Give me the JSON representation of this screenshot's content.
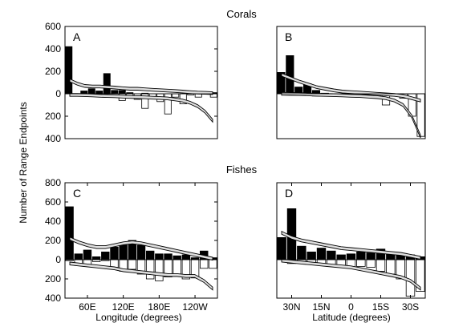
{
  "chart_data": [
    {
      "panel": "A",
      "row_title": "Corals",
      "type": "bar",
      "xlabel": "",
      "ylabel": "Number of Range Endpoints",
      "ylim": [
        -400,
        600
      ],
      "yticks": [
        -400,
        -200,
        0,
        200,
        400,
        600
      ],
      "ytick_labels": [
        "400",
        "200",
        "0",
        "200",
        "400",
        "600"
      ],
      "xticks": [],
      "upper_bars": [
        420,
        0,
        25,
        45,
        25,
        180,
        30,
        30,
        10,
        0,
        5,
        0,
        0,
        0,
        0,
        0,
        0,
        0,
        0,
        10
      ],
      "lower_bars": [
        0,
        -10,
        -5,
        0,
        0,
        0,
        0,
        -60,
        -20,
        -50,
        -130,
        -40,
        -70,
        -180,
        -30,
        -90,
        -10,
        -30,
        0,
        -30
      ],
      "upper_band_center": [
        120,
        90,
        70,
        65,
        65,
        60,
        55,
        50,
        45,
        45,
        40,
        35,
        32,
        28,
        25,
        20,
        15,
        10,
        8,
        5
      ],
      "lower_band_center": [
        -10,
        -10,
        -12,
        -15,
        -18,
        -20,
        -22,
        -25,
        -28,
        -30,
        -32,
        -35,
        -38,
        -42,
        -50,
        -60,
        -80,
        -110,
        -160,
        -240
      ],
      "band_width": 25
    },
    {
      "panel": "B",
      "row_title": "Corals",
      "type": "bar",
      "xlabel": "",
      "ylabel": "",
      "ylim": [
        -400,
        600
      ],
      "xticks": [],
      "upper_bars": [
        190,
        340,
        60,
        90,
        30,
        5,
        0,
        0,
        0,
        0,
        0,
        0,
        0,
        0,
        0,
        0,
        0
      ],
      "lower_bars": [
        0,
        0,
        0,
        0,
        -20,
        -10,
        -5,
        -10,
        -20,
        -30,
        -10,
        -30,
        -100,
        -20,
        -40,
        -200,
        -380
      ],
      "upper_band_center": [
        170,
        140,
        110,
        85,
        60,
        45,
        30,
        20,
        15,
        10,
        5,
        0,
        -5,
        -10,
        -20,
        -40,
        -60
      ],
      "lower_band_center": [
        0,
        -2,
        -3,
        -5,
        -8,
        -10,
        -12,
        -15,
        -18,
        -20,
        -25,
        -30,
        -40,
        -60,
        -100,
        -200,
        -380
      ],
      "band_width": 25
    },
    {
      "panel": "C",
      "row_title": "Fishes",
      "type": "bar",
      "xlabel": "Longitude (degrees)",
      "ylabel": "Number of Range Endpoints",
      "ylim": [
        -400,
        800
      ],
      "yticks": [
        -400,
        -200,
        0,
        200,
        400,
        600,
        800
      ],
      "ytick_labels": [
        "400",
        "200",
        "0",
        "200",
        "400",
        "600",
        "800"
      ],
      "xticks": [
        [
          "60E",
          2
        ],
        [
          "120E",
          6
        ],
        [
          "180E",
          10
        ],
        [
          "120W",
          14
        ]
      ],
      "upper_bars": [
        550,
        60,
        100,
        30,
        80,
        130,
        170,
        200,
        150,
        90,
        60,
        60,
        40,
        50,
        20,
        90,
        20
      ],
      "lower_bars": [
        -10,
        -60,
        -60,
        -20,
        -10,
        -80,
        -120,
        -100,
        -150,
        -200,
        -220,
        -180,
        -170,
        -200,
        -190,
        -90,
        -90
      ],
      "upper_band_center": [
        220,
        180,
        150,
        130,
        130,
        150,
        170,
        180,
        170,
        150,
        130,
        110,
        90,
        70,
        50,
        30,
        10
      ],
      "lower_band_center": [
        -40,
        -50,
        -60,
        -70,
        -80,
        -90,
        -110,
        -120,
        -130,
        -140,
        -150,
        -160,
        -160,
        -170,
        -170,
        -220,
        -300
      ],
      "band_width": 30
    },
    {
      "panel": "D",
      "row_title": "Fishes",
      "type": "bar",
      "xlabel": "Latitude (degrees)",
      "ylabel": "",
      "ylim": [
        -400,
        800
      ],
      "xticks": [
        [
          "30N",
          1
        ],
        [
          "15N",
          4
        ],
        [
          "0",
          7
        ],
        [
          "15S",
          10
        ],
        [
          "30S",
          13
        ]
      ],
      "upper_bars": [
        230,
        530,
        140,
        80,
        120,
        90,
        50,
        60,
        80,
        70,
        110,
        80,
        60,
        50,
        30
      ],
      "lower_bars": [
        0,
        -40,
        -20,
        -30,
        -40,
        -50,
        -60,
        -80,
        -70,
        -80,
        -120,
        -150,
        -200,
        -380,
        -330
      ],
      "upper_band_center": [
        280,
        230,
        200,
        180,
        160,
        140,
        120,
        110,
        100,
        90,
        80,
        70,
        60,
        40,
        20
      ],
      "lower_band_center": [
        -10,
        -20,
        -30,
        -40,
        -50,
        -60,
        -70,
        -80,
        -100,
        -120,
        -140,
        -160,
        -180,
        -220,
        -300
      ],
      "band_width": 30
    }
  ],
  "labels": {
    "corals_title": "Corals",
    "fishes_title": "Fishes",
    "ylabel": "Number of Range Endpoints",
    "xlabel_left": "Longitude (degrees)",
    "xlabel_right": "Latitude (degrees)",
    "panel_a": "A",
    "panel_b": "B",
    "panel_c": "C",
    "panel_d": "D"
  },
  "colors": {
    "bar_fill": "#000000",
    "lower_bar_fill": "#ffffff",
    "band_fill": "#dddddd",
    "axis": "#000000"
  }
}
